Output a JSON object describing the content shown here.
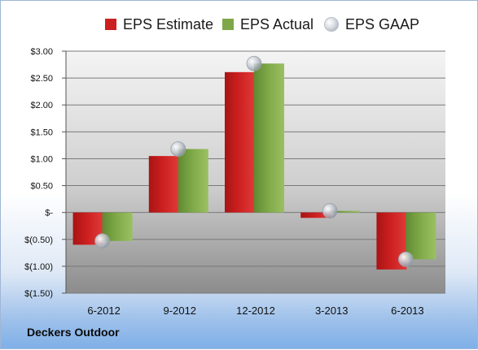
{
  "company": "Deckers Outdoor",
  "colors": {
    "estimate": "#cc1f1f",
    "actual": "#7ea847",
    "gaap": "#c9ced6"
  },
  "legend": [
    {
      "key": "estimate",
      "label": "EPS Estimate",
      "marker": "square"
    },
    {
      "key": "actual",
      "label": "EPS Actual",
      "marker": "square"
    },
    {
      "key": "gaap",
      "label": "EPS GAAP",
      "marker": "circle"
    }
  ],
  "chart_data": {
    "type": "bar",
    "categories": [
      "6-2012",
      "9-2012",
      "12-2012",
      "3-2013",
      "6-2013"
    ],
    "series": [
      {
        "name": "EPS Estimate",
        "type": "bar",
        "values": [
          -0.6,
          1.05,
          2.61,
          -0.1,
          -1.06
        ]
      },
      {
        "name": "EPS Actual",
        "type": "bar",
        "values": [
          -0.53,
          1.18,
          2.77,
          0.03,
          -0.87
        ]
      },
      {
        "name": "EPS GAAP",
        "type": "scatter",
        "values": [
          -0.53,
          1.18,
          2.77,
          0.03,
          -0.87
        ]
      }
    ],
    "ylim": [
      -1.5,
      3.0
    ],
    "yticks": [
      3.0,
      2.5,
      2.0,
      1.5,
      1.0,
      0.5,
      0,
      -0.5,
      -1.0,
      -1.5
    ],
    "ytick_labels": [
      "$3.00",
      "$2.50",
      "$2.00",
      "$1.50",
      "$1.00",
      "$0.50",
      "$-",
      "$(0.50)",
      "$(1.00)",
      "$(1.50)"
    ],
    "grid": true,
    "legend_position": "top"
  }
}
